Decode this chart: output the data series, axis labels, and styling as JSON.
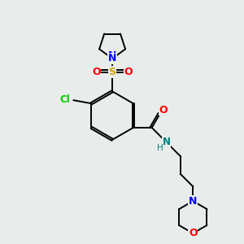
{
  "bg_color": "#e8eceb",
  "bond_color": "#000000",
  "atom_colors": {
    "N_blue": "#0000ff",
    "N_teal": "#008080",
    "O_red": "#ff0000",
    "S_yellow": "#d4a800",
    "Cl_green": "#00cc00",
    "C": "#000000",
    "H": "#555555"
  },
  "figsize": [
    3.0,
    3.0
  ],
  "dpi": 100,
  "xlim": [
    0,
    300
  ],
  "ylim": [
    0,
    300
  ]
}
